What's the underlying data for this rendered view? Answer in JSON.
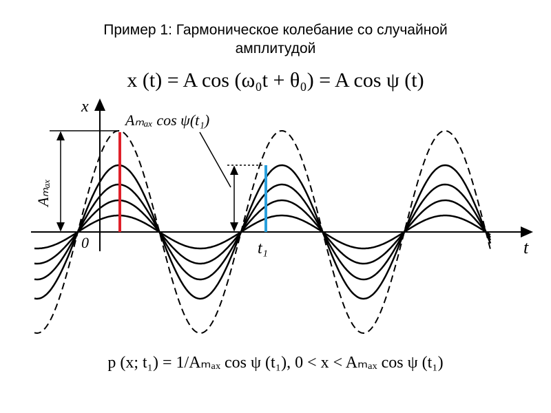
{
  "title": "Пример 1: Гармоническое колебание со случайной амплитудой",
  "formula_top": "x (t) = A cos (ω₀t + θ₀) = A cos ψ (t)",
  "diagram": {
    "x_axis_label": "t",
    "y_axis_label": "x",
    "origin_label": "0",
    "t1_label": "t₁",
    "amax_label": "Aₘₐₓ",
    "pointer_label": "Aₘₐₓ cos ψ(t₁)"
  },
  "formula_bottom": "p (x; t₁) = 1/Aₘₐₓ cos ψ (t₁),  0 < x < Aₘₐₓ cos ψ (t₁)"
}
